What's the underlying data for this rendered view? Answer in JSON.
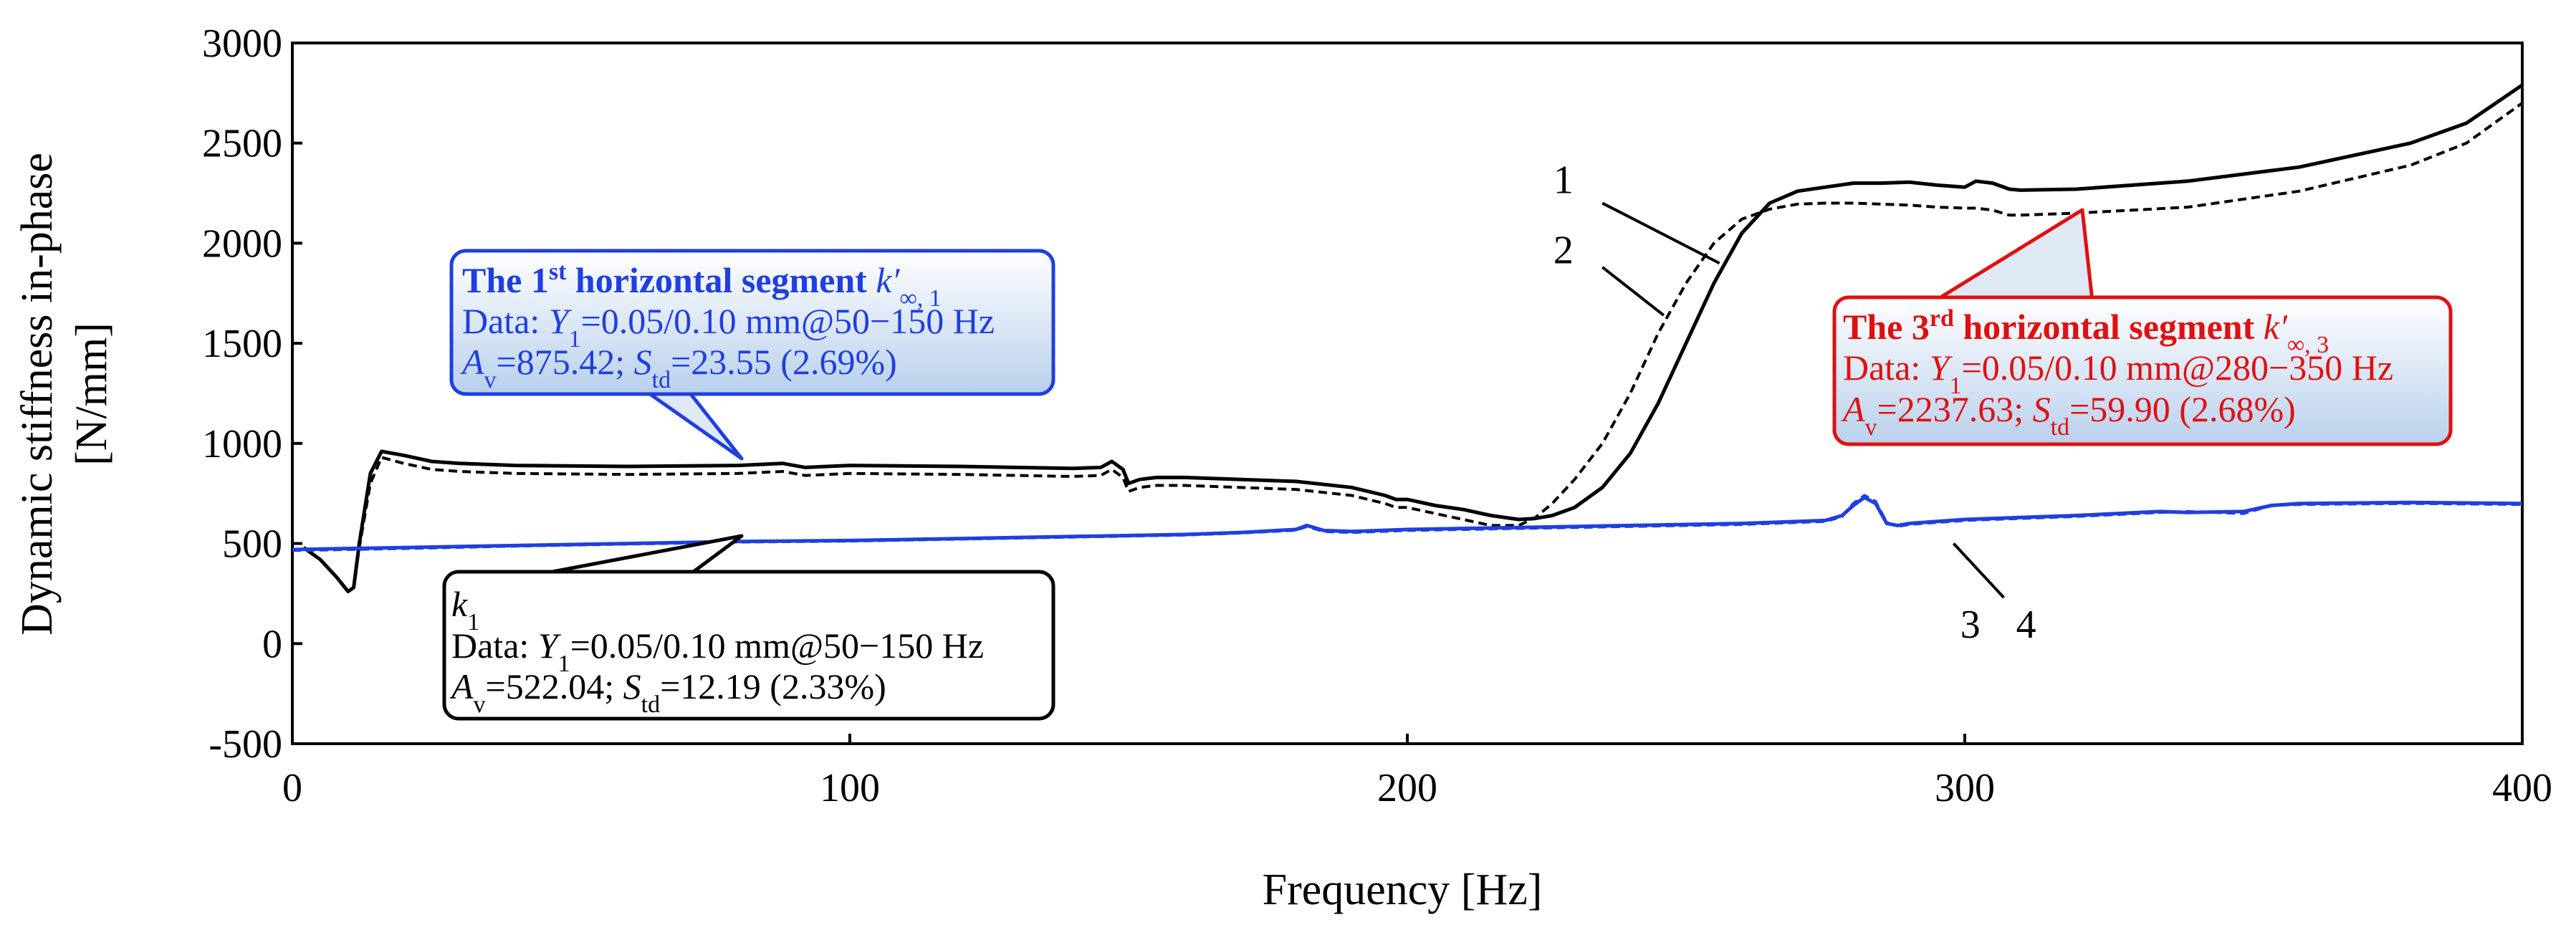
{
  "chart_data": {
    "type": "line",
    "title": "",
    "xlabel": "Frequency [Hz]",
    "ylabel_line1": "Dynamic stiffness in-phase",
    "ylabel_line2": "[N/mm]",
    "xlim": [
      0,
      400
    ],
    "ylim": [
      -500,
      3000
    ],
    "xticks": [
      0,
      100,
      200,
      300,
      400
    ],
    "yticks": [
      -500,
      0,
      500,
      1000,
      1500,
      2000,
      2500,
      3000
    ],
    "grid": false,
    "colors": {
      "curve12": "#000000",
      "curve34": "#1f3fe0",
      "box1": "#1f3fe0",
      "boxk1": "#000000",
      "box3": "#e01010"
    },
    "series": [
      {
        "name": "1",
        "style": "solid",
        "color": "#000000",
        "x": [
          2,
          5,
          8,
          10,
          11,
          12,
          14,
          16,
          20,
          25,
          30,
          40,
          60,
          80,
          88,
          92,
          100,
          120,
          140,
          145,
          147,
          149,
          150,
          152,
          155,
          160,
          180,
          190,
          196,
          198,
          200,
          205,
          210,
          215,
          220,
          223,
          226,
          230,
          235,
          240,
          245,
          250,
          255,
          260,
          265,
          270,
          275,
          280,
          285,
          290,
          295,
          300,
          302,
          305,
          308,
          310,
          320,
          340,
          360,
          380,
          390,
          400
        ],
        "y": [
          480,
          420,
          330,
          260,
          280,
          500,
          850,
          960,
          940,
          910,
          900,
          890,
          885,
          890,
          900,
          880,
          890,
          885,
          875,
          880,
          910,
          870,
          800,
          820,
          830,
          830,
          810,
          780,
          740,
          720,
          720,
          690,
          670,
          640,
          620,
          625,
          640,
          680,
          780,
          950,
          1200,
          1500,
          1800,
          2050,
          2200,
          2260,
          2280,
          2300,
          2300,
          2305,
          2290,
          2280,
          2310,
          2300,
          2270,
          2265,
          2270,
          2310,
          2380,
          2500,
          2600,
          2790
        ]
      },
      {
        "name": "2",
        "style": "dashed",
        "color": "#000000",
        "x": [
          2,
          5,
          8,
          10,
          11,
          12,
          14,
          16,
          20,
          25,
          30,
          40,
          60,
          80,
          88,
          92,
          100,
          120,
          140,
          145,
          147,
          149,
          150,
          152,
          155,
          160,
          180,
          190,
          196,
          198,
          200,
          205,
          210,
          215,
          220,
          223,
          226,
          230,
          235,
          240,
          245,
          250,
          255,
          260,
          265,
          270,
          275,
          280,
          285,
          290,
          295,
          300,
          302,
          305,
          308,
          310,
          320,
          340,
          360,
          380,
          390,
          400
        ],
        "y": [
          480,
          420,
          330,
          260,
          280,
          480,
          800,
          930,
          900,
          870,
          860,
          850,
          845,
          850,
          860,
          840,
          850,
          845,
          835,
          840,
          870,
          830,
          760,
          780,
          790,
          790,
          770,
          740,
          700,
          680,
          680,
          650,
          620,
          590,
          590,
          630,
          700,
          820,
          1000,
          1250,
          1550,
          1800,
          2000,
          2120,
          2170,
          2195,
          2200,
          2200,
          2195,
          2190,
          2180,
          2175,
          2175,
          2165,
          2140,
          2140,
          2150,
          2180,
          2260,
          2390,
          2500,
          2700
        ]
      },
      {
        "name": "3",
        "style": "solid",
        "color": "#1f3fe0",
        "x": [
          0,
          20,
          40,
          60,
          80,
          100,
          120,
          140,
          160,
          170,
          180,
          182,
          185,
          190,
          200,
          220,
          240,
          260,
          275,
          278,
          280,
          282,
          284,
          286,
          288,
          290,
          300,
          320,
          335,
          340,
          350,
          355,
          360,
          380,
          400
        ],
        "y": [
          470,
          480,
          490,
          500,
          510,
          515,
          525,
          535,
          545,
          555,
          570,
          590,
          565,
          560,
          570,
          580,
          590,
          600,
          615,
          640,
          690,
          730,
          700,
          600,
          590,
          600,
          620,
          640,
          660,
          655,
          660,
          690,
          700,
          705,
          700
        ]
      },
      {
        "name": "4",
        "style": "dashed",
        "color": "#1f3fe0",
        "x": [
          0,
          20,
          40,
          60,
          80,
          100,
          120,
          140,
          160,
          170,
          180,
          182,
          185,
          190,
          200,
          220,
          240,
          260,
          275,
          278,
          280,
          282,
          284,
          286,
          288,
          290,
          300,
          320,
          335,
          340,
          350,
          355,
          360,
          380,
          400
        ],
        "y": [
          465,
          475,
          487,
          497,
          507,
          512,
          522,
          532,
          542,
          552,
          566,
          585,
          560,
          555,
          565,
          575,
          585,
          595,
          610,
          635,
          700,
          740,
          710,
          605,
          585,
          595,
          615,
          635,
          655,
          660,
          650,
          690,
          695,
          700,
          695
        ]
      }
    ],
    "curve_labels": [
      {
        "text": "1",
        "x": 228,
        "y": 2250,
        "lx": [
          235,
          256
        ],
        "ly": [
          2200,
          1900
        ]
      },
      {
        "text": "2",
        "x": 228,
        "y": 1900,
        "lx": [
          235,
          246
        ],
        "ly": [
          1880,
          1640
        ]
      },
      {
        "text": "3",
        "x": 301,
        "y": 30,
        "lx": [
          307,
          298
        ],
        "ly": [
          230,
          500
        ]
      },
      {
        "text": "4",
        "x": 311,
        "y": 30,
        "lx": [],
        "ly": []
      }
    ],
    "annotations": [
      {
        "id": "box1",
        "color": "#1f3fe0",
        "title_pre": "The 1",
        "title_sup": "st",
        "title_post": " horizontal segment ",
        "title_sym": "k′",
        "title_sub": "∞, 1",
        "line2_pre": "Data: ",
        "line2_var": "Y",
        "line2_sub": "1",
        "line2_post": "=0.05/0.10 mm@50−150 Hz",
        "line3_var1": "A",
        "line3_sub1": "v",
        "line3_mid": "=875.42; ",
        "line3_var2": "S",
        "line3_sub2": "td",
        "line3_post": "=23.55 (2.69%)"
      },
      {
        "id": "boxk1",
        "color": "#000000",
        "title_sym": "k",
        "title_sub": "1",
        "line2_pre": "Data: ",
        "line2_var": "Y",
        "line2_sub": "1",
        "line2_post": "=0.05/0.10 mm@50−150 Hz",
        "line3_var1": "A",
        "line3_sub1": "v",
        "line3_mid": "=522.04; ",
        "line3_var2": "S",
        "line3_sub2": "td",
        "line3_post": "=12.19 (2.33%)"
      },
      {
        "id": "box3",
        "color": "#e01010",
        "title_pre": "The 3",
        "title_sup": "rd",
        "title_post": " horizontal segment ",
        "title_sym": "k′",
        "title_sub": "∞, 3",
        "line2_pre": "Data: ",
        "line2_var": "Y",
        "line2_sub": "1",
        "line2_post": "=0.05/0.10 mm@280−350 Hz",
        "line3_var1": "A",
        "line3_sub1": "v",
        "line3_mid": "=2237.63; ",
        "line3_var2": "S",
        "line3_sub2": "td",
        "line3_post": "=59.90 (2.68%)"
      }
    ]
  }
}
